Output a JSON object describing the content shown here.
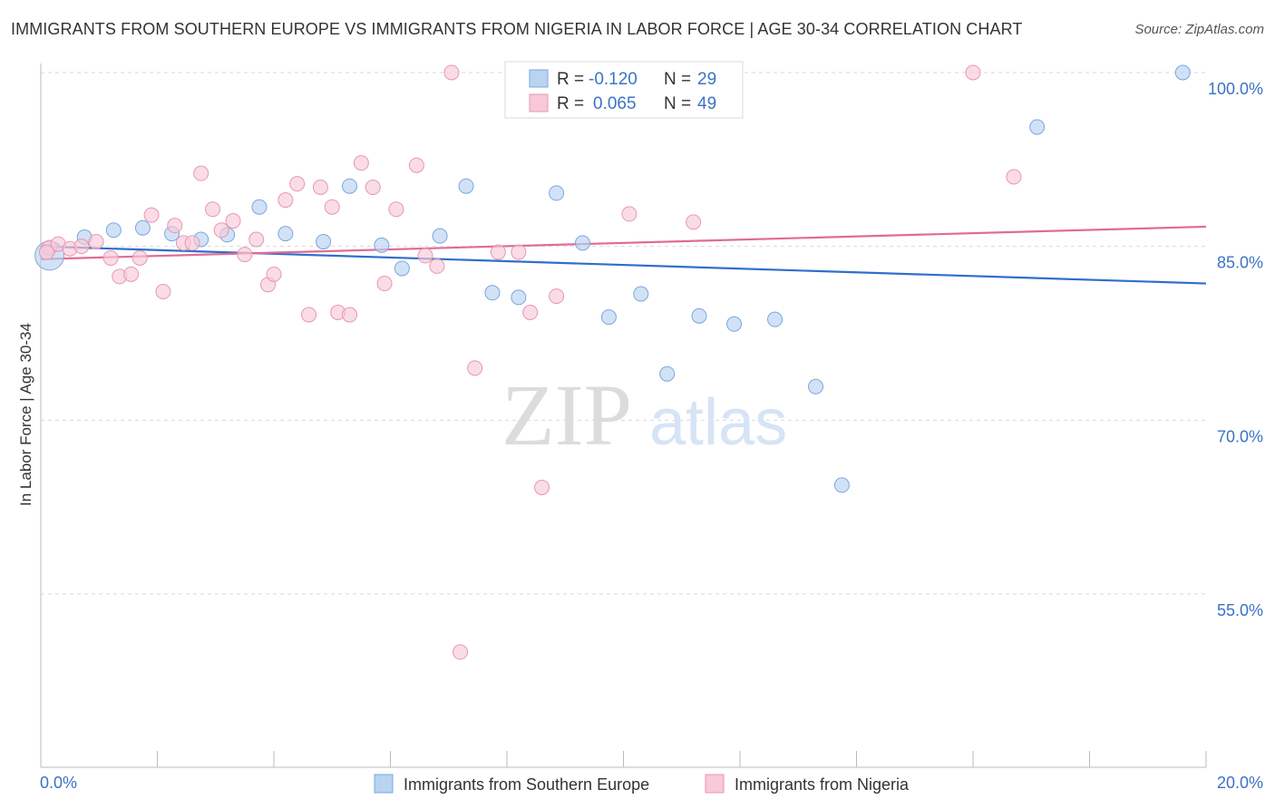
{
  "title": "IMMIGRANTS FROM SOUTHERN EUROPE VS IMMIGRANTS FROM NIGERIA IN LABOR FORCE | AGE 30-34 CORRELATION CHART",
  "source": "Source: ZipAtlas.com",
  "watermark": {
    "zip": "ZIP",
    "atlas": "atlas"
  },
  "colors": {
    "blue_fill": "#b9d3f2",
    "blue_stroke": "#7aa7dc",
    "blue_line": "#2f6fcb",
    "pink_fill": "#f8c9d8",
    "pink_stroke": "#e996b2",
    "pink_line": "#e06b96",
    "grid": "#d9d9d9",
    "tick_text": "#3b73c4"
  },
  "legend": {
    "r_label": "R =",
    "n_label": "N =",
    "series": [
      {
        "r": "-0.120",
        "n": "29"
      },
      {
        "r": "0.065",
        "n": "49"
      }
    ]
  },
  "chart_data": {
    "type": "scatter",
    "title": "IMMIGRANTS FROM SOUTHERN EUROPE VS IMMIGRANTS FROM NIGERIA IN LABOR FORCE | AGE 30-34 CORRELATION CHART",
    "xlabel": "",
    "ylabel": "In Labor Force | Age 30-34",
    "xlim": [
      0,
      20
    ],
    "ylim": [
      40,
      102
    ],
    "x_tick_labels": [
      "0.0%",
      "20.0%"
    ],
    "y_ticks": [
      55,
      70,
      85,
      100
    ],
    "y_tick_labels": [
      "55.0%",
      "70.0%",
      "85.0%",
      "100.0%"
    ],
    "grid": true,
    "legend_placement": "top-center",
    "series": [
      {
        "name": "Immigrants from Southern Europe",
        "color": "blue",
        "trend": {
          "x": [
            0,
            20
          ],
          "y": [
            85.0,
            81.8
          ]
        },
        "points": [
          {
            "x": 0.15,
            "y": 84.2,
            "big": true
          },
          {
            "x": 0.75,
            "y": 85.8
          },
          {
            "x": 1.25,
            "y": 86.4
          },
          {
            "x": 1.75,
            "y": 86.6
          },
          {
            "x": 2.25,
            "y": 86.1
          },
          {
            "x": 2.75,
            "y": 85.6
          },
          {
            "x": 3.2,
            "y": 86.0
          },
          {
            "x": 3.75,
            "y": 88.4
          },
          {
            "x": 4.2,
            "y": 86.1
          },
          {
            "x": 4.85,
            "y": 85.4
          },
          {
            "x": 5.3,
            "y": 90.2
          },
          {
            "x": 5.85,
            "y": 85.1
          },
          {
            "x": 6.2,
            "y": 83.1
          },
          {
            "x": 6.85,
            "y": 85.9
          },
          {
            "x": 7.3,
            "y": 90.2
          },
          {
            "x": 7.75,
            "y": 81.0
          },
          {
            "x": 8.2,
            "y": 80.6
          },
          {
            "x": 8.85,
            "y": 89.6
          },
          {
            "x": 9.3,
            "y": 85.3
          },
          {
            "x": 9.75,
            "y": 78.9
          },
          {
            "x": 10.3,
            "y": 80.9
          },
          {
            "x": 10.75,
            "y": 74.0
          },
          {
            "x": 11.3,
            "y": 79.0
          },
          {
            "x": 11.9,
            "y": 78.3
          },
          {
            "x": 12.6,
            "y": 78.7
          },
          {
            "x": 13.3,
            "y": 72.9
          },
          {
            "x": 13.75,
            "y": 64.4
          },
          {
            "x": 17.1,
            "y": 95.3
          },
          {
            "x": 19.6,
            "y": 100.0
          }
        ]
      },
      {
        "name": "Immigrants from Nigeria",
        "color": "pink",
        "trend": {
          "x": [
            0,
            20
          ],
          "y": [
            83.9,
            86.7
          ]
        },
        "points": [
          {
            "x": 0.15,
            "y": 84.9
          },
          {
            "x": 0.3,
            "y": 85.2
          },
          {
            "x": 0.5,
            "y": 84.8
          },
          {
            "x": 0.7,
            "y": 85.0
          },
          {
            "x": 0.95,
            "y": 85.4
          },
          {
            "x": 1.2,
            "y": 84.0
          },
          {
            "x": 1.35,
            "y": 82.4
          },
          {
            "x": 1.55,
            "y": 82.6
          },
          {
            "x": 1.7,
            "y": 84.0
          },
          {
            "x": 1.9,
            "y": 87.7
          },
          {
            "x": 2.1,
            "y": 81.1
          },
          {
            "x": 2.3,
            "y": 86.8
          },
          {
            "x": 2.45,
            "y": 85.3
          },
          {
            "x": 2.6,
            "y": 85.3
          },
          {
            "x": 2.75,
            "y": 91.3
          },
          {
            "x": 2.95,
            "y": 88.2
          },
          {
            "x": 3.1,
            "y": 86.4
          },
          {
            "x": 3.3,
            "y": 87.2
          },
          {
            "x": 3.5,
            "y": 84.3
          },
          {
            "x": 3.7,
            "y": 85.6
          },
          {
            "x": 3.9,
            "y": 81.7
          },
          {
            "x": 4.0,
            "y": 82.6
          },
          {
            "x": 4.2,
            "y": 89.0
          },
          {
            "x": 4.4,
            "y": 90.4
          },
          {
            "x": 4.6,
            "y": 79.1
          },
          {
            "x": 4.8,
            "y": 90.1
          },
          {
            "x": 5.0,
            "y": 88.4
          },
          {
            "x": 5.1,
            "y": 79.3
          },
          {
            "x": 5.3,
            "y": 79.1
          },
          {
            "x": 5.5,
            "y": 92.2
          },
          {
            "x": 5.7,
            "y": 90.1
          },
          {
            "x": 5.9,
            "y": 81.8
          },
          {
            "x": 6.1,
            "y": 88.2
          },
          {
            "x": 6.45,
            "y": 92.0
          },
          {
            "x": 6.6,
            "y": 84.2
          },
          {
            "x": 6.8,
            "y": 83.3
          },
          {
            "x": 7.05,
            "y": 100.0
          },
          {
            "x": 7.2,
            "y": 50.0
          },
          {
            "x": 7.45,
            "y": 74.5
          },
          {
            "x": 7.85,
            "y": 84.5
          },
          {
            "x": 8.2,
            "y": 84.5
          },
          {
            "x": 8.4,
            "y": 79.3
          },
          {
            "x": 8.6,
            "y": 64.2
          },
          {
            "x": 8.85,
            "y": 80.7
          },
          {
            "x": 10.1,
            "y": 87.8
          },
          {
            "x": 11.2,
            "y": 87.1
          },
          {
            "x": 16.0,
            "y": 100.0
          },
          {
            "x": 16.7,
            "y": 91.0
          },
          {
            "x": 0.1,
            "y": 84.5
          }
        ]
      }
    ]
  }
}
